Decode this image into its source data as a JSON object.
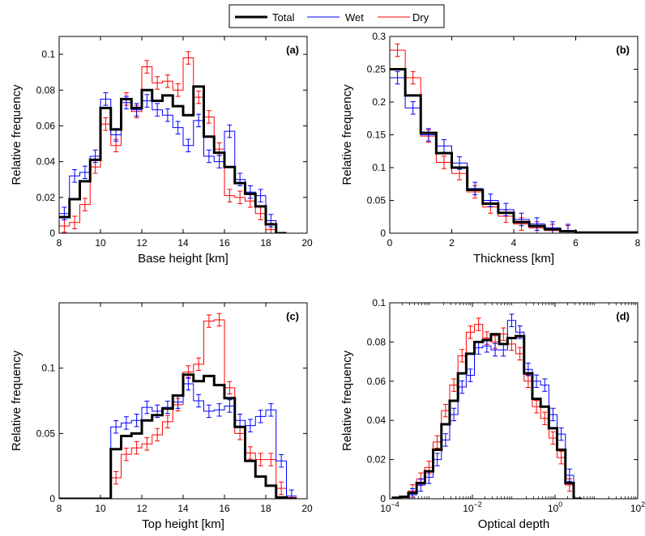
{
  "legend": {
    "entries": [
      {
        "name": "Total",
        "color": "#000000",
        "width": 3.0
      },
      {
        "name": "Wet",
        "color": "#0000ff",
        "width": 1.0
      },
      {
        "name": "Dry",
        "color": "#ff0000",
        "width": 1.0
      }
    ]
  },
  "chart_data": [
    {
      "type": "line",
      "step": "histogram",
      "panel_label": "(a)",
      "xlabel": "Base height [km]",
      "ylabel": "Relative frequency",
      "xlim": [
        8,
        20
      ],
      "ylim": [
        0,
        0.11
      ],
      "xscale": "linear",
      "xticks": [
        8,
        10,
        12,
        14,
        16,
        18,
        20
      ],
      "xtick_labels": [
        "8",
        "10",
        "12",
        "14",
        "16",
        "18",
        "20"
      ],
      "yticks": [
        0,
        0.02,
        0.04,
        0.06,
        0.08,
        0.1
      ],
      "ytick_labels": [
        "0",
        "0.02",
        "0.04",
        "0.06",
        "0.08",
        "0.1"
      ],
      "bin_edges": [
        8.0,
        8.5,
        9.0,
        9.5,
        10.0,
        10.5,
        11.0,
        11.5,
        12.0,
        12.5,
        13.0,
        13.5,
        14.0,
        14.5,
        15.0,
        15.5,
        16.0,
        16.5,
        17.0,
        17.5,
        18.0,
        18.5,
        19.0
      ],
      "series": [
        {
          "name": "Total",
          "values": [
            0.009,
            0.019,
            0.029,
            0.041,
            0.07,
            0.058,
            0.075,
            0.07,
            0.08,
            0.074,
            0.077,
            0.071,
            0.066,
            0.082,
            0.054,
            0.045,
            0.037,
            0.028,
            0.022,
            0.015,
            0.005,
            0.0
          ]
        },
        {
          "name": "Wet",
          "values": [
            0.011,
            0.032,
            0.034,
            0.043,
            0.075,
            0.055,
            0.073,
            0.069,
            0.074,
            0.069,
            0.066,
            0.059,
            0.049,
            0.063,
            0.043,
            0.04,
            0.057,
            0.03,
            0.023,
            0.021,
            0.007,
            0.0
          ]
        },
        {
          "name": "Dry",
          "values": [
            0.004,
            0.006,
            0.016,
            0.037,
            0.061,
            0.049,
            0.075,
            0.068,
            0.093,
            0.084,
            0.085,
            0.08,
            0.098,
            0.076,
            0.065,
            0.047,
            0.021,
            0.02,
            0.018,
            0.011,
            0.002,
            0.0
          ]
        }
      ]
    },
    {
      "type": "line",
      "step": "histogram",
      "panel_label": "(b)",
      "xlabel": "Thickness [km]",
      "ylabel": "Relative frequency",
      "xlim": [
        0,
        8
      ],
      "ylim": [
        0,
        0.3
      ],
      "xscale": "linear",
      "xticks": [
        0,
        2,
        4,
        6,
        8
      ],
      "xtick_labels": [
        "0",
        "2",
        "4",
        "6",
        "8"
      ],
      "yticks": [
        0,
        0.05,
        0.1,
        0.15,
        0.2,
        0.25,
        0.3
      ],
      "ytick_labels": [
        "0",
        "0.05",
        "0.1",
        "0.15",
        "0.2",
        "0.25",
        "0.3"
      ],
      "bin_edges": [
        0.0,
        0.5,
        1.0,
        1.5,
        2.0,
        2.5,
        3.0,
        3.5,
        4.0,
        4.5,
        5.0,
        5.5,
        6.0,
        8.0
      ],
      "series": [
        {
          "name": "Total",
          "values": [
            0.25,
            0.21,
            0.153,
            0.122,
            0.1,
            0.066,
            0.045,
            0.031,
            0.017,
            0.011,
            0.006,
            0.003,
            0.001
          ]
        },
        {
          "name": "Wet",
          "values": [
            0.237,
            0.191,
            0.15,
            0.133,
            0.107,
            0.068,
            0.05,
            0.036,
            0.021,
            0.014,
            0.008,
            0.004,
            0.001
          ]
        },
        {
          "name": "Dry",
          "values": [
            0.279,
            0.237,
            0.148,
            0.108,
            0.091,
            0.063,
            0.04,
            0.026,
            0.014,
            0.008,
            0.004,
            0.002,
            0.0
          ]
        }
      ]
    },
    {
      "type": "line",
      "step": "histogram",
      "panel_label": "(c)",
      "xlabel": "Top height [km]",
      "ylabel": "Relative frequency",
      "xlim": [
        8,
        20
      ],
      "ylim": [
        0,
        0.15
      ],
      "xscale": "linear",
      "xticks": [
        8,
        10,
        12,
        14,
        16,
        18,
        20
      ],
      "xtick_labels": [
        "8",
        "10",
        "12",
        "14",
        "16",
        "18",
        "20"
      ],
      "yticks": [
        0,
        0.05,
        0.1
      ],
      "ytick_labels": [
        "0",
        "0.05",
        "0.1"
      ],
      "bin_edges": [
        8.0,
        10.5,
        11.0,
        11.5,
        12.0,
        12.5,
        13.0,
        13.5,
        14.0,
        14.5,
        15.0,
        15.5,
        16.0,
        16.5,
        17.0,
        17.5,
        18.0,
        18.5,
        19.0,
        19.5
      ],
      "series": [
        {
          "name": "Total",
          "values": [
            0.0,
            0.038,
            0.048,
            0.05,
            0.06,
            0.064,
            0.069,
            0.079,
            0.095,
            0.09,
            0.094,
            0.087,
            0.077,
            0.055,
            0.029,
            0.017,
            0.01,
            0.001,
            0.0
          ]
        },
        {
          "name": "Wet",
          "values": [
            0.0,
            0.055,
            0.058,
            0.06,
            0.07,
            0.067,
            0.07,
            0.074,
            0.088,
            0.075,
            0.067,
            0.068,
            0.071,
            0.06,
            0.056,
            0.063,
            0.068,
            0.029,
            0.002
          ]
        },
        {
          "name": "Dry",
          "values": [
            0.0,
            0.016,
            0.034,
            0.039,
            0.042,
            0.049,
            0.059,
            0.072,
            0.097,
            0.103,
            0.136,
            0.137,
            0.085,
            0.05,
            0.035,
            0.03,
            0.03,
            0.008,
            0.001
          ]
        }
      ]
    },
    {
      "type": "line",
      "step": "histogram",
      "panel_label": "(d)",
      "xlabel": "Optical depth",
      "ylabel": "Relative frequency",
      "xlim": [
        0.0001,
        100
      ],
      "ylim": [
        0,
        0.1
      ],
      "xscale": "log",
      "xticks": [
        0.0001,
        0.01,
        1,
        100
      ],
      "xtick_labels": [
        {
          "base": "10",
          "exp": "−4"
        },
        {
          "base": "10",
          "exp": "−2"
        },
        {
          "base": "10",
          "exp": "0"
        },
        {
          "base": "10",
          "exp": "2"
        }
      ],
      "yticks": [
        0,
        0.02,
        0.04,
        0.06,
        0.08,
        0.1
      ],
      "ytick_labels": [
        "0",
        "0.02",
        "0.04",
        "0.06",
        "0.08",
        "0.1"
      ],
      "bin_edges": [
        0.000112,
        0.000177,
        0.000282,
        0.000447,
        0.000708,
        0.00112,
        0.00178,
        0.00282,
        0.00447,
        0.00708,
        0.0112,
        0.0178,
        0.0282,
        0.0447,
        0.0708,
        0.112,
        0.178,
        0.282,
        0.447,
        0.708,
        1.12,
        1.78,
        2.82,
        4.47
      ],
      "series": [
        {
          "name": "Total",
          "values": [
            0.0005,
            0.001,
            0.003,
            0.008,
            0.014,
            0.025,
            0.038,
            0.05,
            0.064,
            0.074,
            0.08,
            0.081,
            0.084,
            0.079,
            0.082,
            0.083,
            0.064,
            0.051,
            0.047,
            0.036,
            0.025,
            0.008,
            0.0
          ]
        },
        {
          "name": "Wet",
          "values": [
            0.0,
            0.001,
            0.002,
            0.007,
            0.011,
            0.02,
            0.03,
            0.043,
            0.057,
            0.063,
            0.077,
            0.078,
            0.076,
            0.076,
            0.091,
            0.085,
            0.066,
            0.06,
            0.058,
            0.043,
            0.033,
            0.012,
            0.0
          ]
        },
        {
          "name": "Dry",
          "values": [
            0.0005,
            0.001,
            0.004,
            0.01,
            0.016,
            0.029,
            0.045,
            0.058,
            0.073,
            0.085,
            0.089,
            0.082,
            0.08,
            0.084,
            0.079,
            0.074,
            0.06,
            0.047,
            0.041,
            0.031,
            0.021,
            0.007,
            0.0
          ]
        }
      ]
    }
  ]
}
